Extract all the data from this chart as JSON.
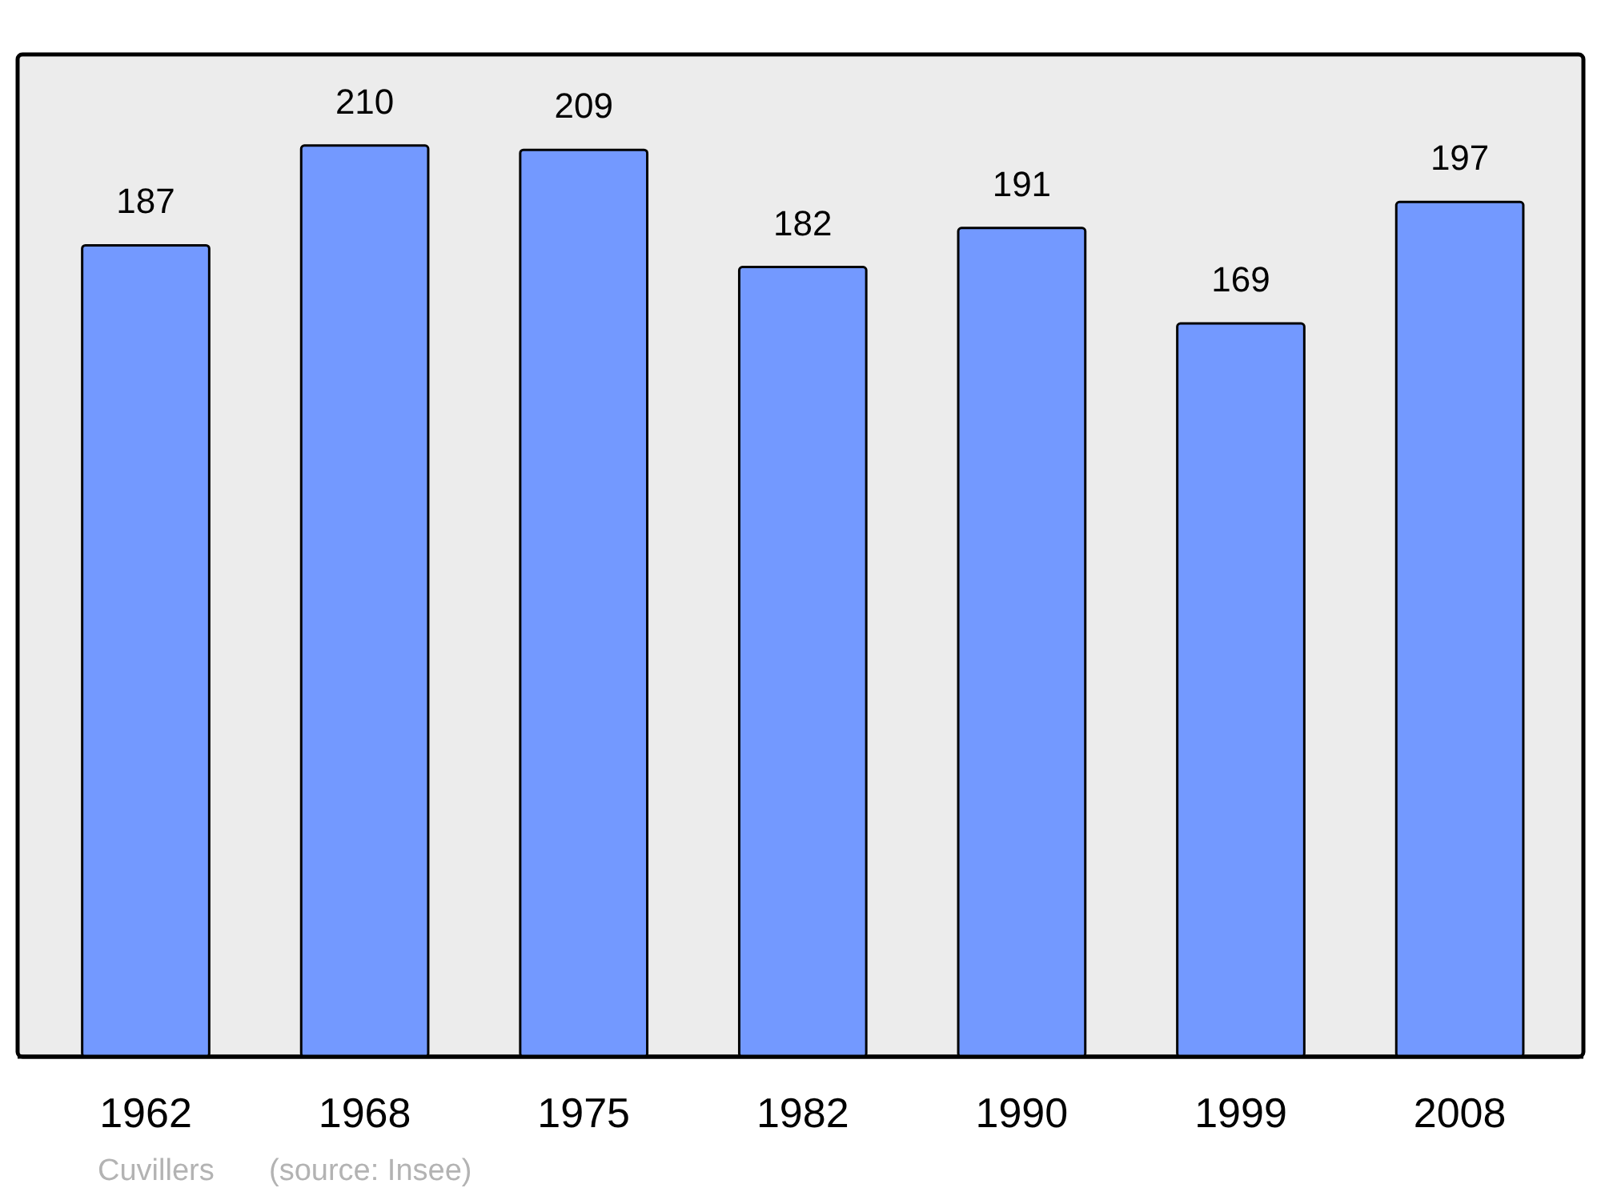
{
  "chart_data": {
    "type": "bar",
    "categories": [
      "1962",
      "1968",
      "1975",
      "1982",
      "1990",
      "1999",
      "2008"
    ],
    "values": [
      187,
      210,
      209,
      182,
      191,
      169,
      197
    ],
    "color": "#7399ff",
    "data_labels": true,
    "annotations": [
      "Cuvillers",
      "(source: Insee)"
    ]
  }
}
